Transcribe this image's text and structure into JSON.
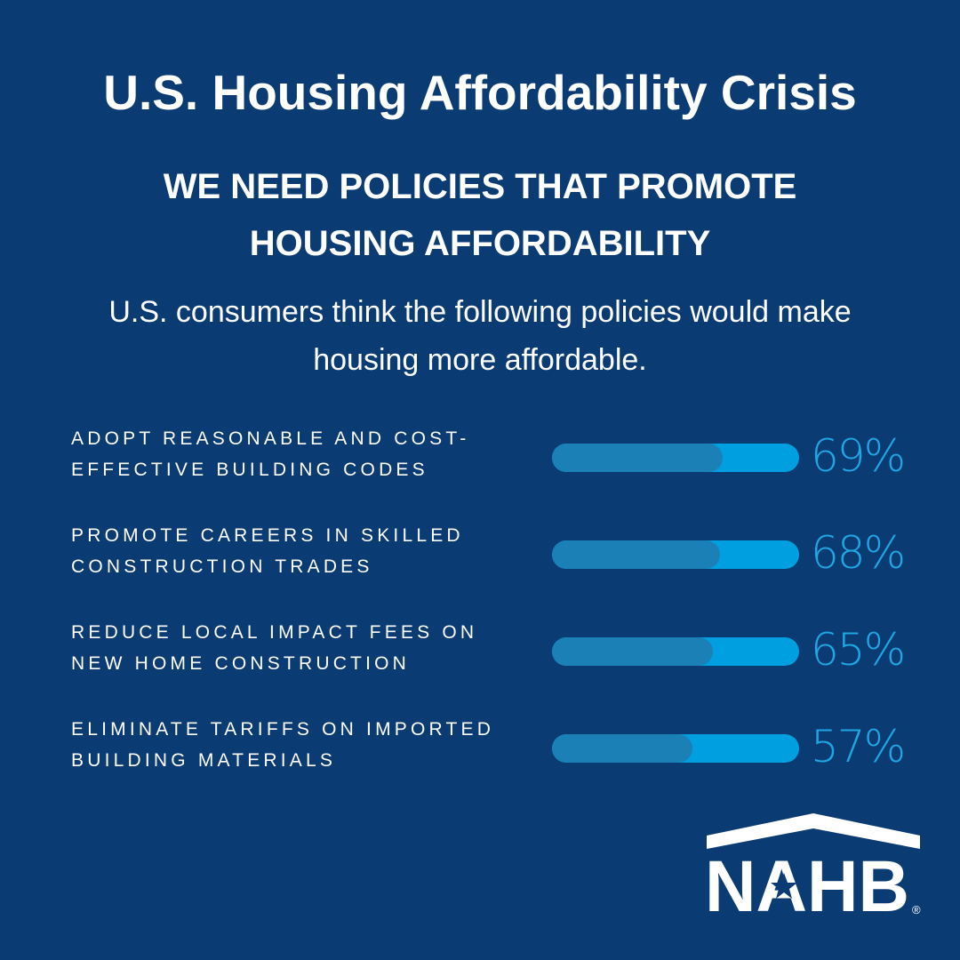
{
  "title": "U.S. Housing Affordability Crisis",
  "subtitle_lines": [
    "WE NEED POLICIES THAT PROMOTE",
    "HOUSING AFFORDABILITY"
  ],
  "description_lines": [
    "U.S. consumers think the following policies would make",
    "housing more affordable."
  ],
  "colors": {
    "background": "#0b3b73",
    "bar_track": "#00a0e0",
    "bar_fill": "#1b80b6",
    "percent_text": "#1fa7e4"
  },
  "chart_data": {
    "type": "bar",
    "orientation": "horizontal",
    "categories": [
      [
        "ADOPT REASONABLE AND COST-",
        "EFFECTIVE BUILDING CODES"
      ],
      [
        "PROMOTE CAREERS IN SKILLED",
        "CONSTRUCTION TRADES"
      ],
      [
        "REDUCE LOCAL IMPACT FEES ON",
        "NEW HOME CONSTRUCTION"
      ],
      [
        "ELIMINATE TARIFFS ON IMPORTED",
        "BUILDING MATERIALS"
      ]
    ],
    "values": [
      69,
      68,
      65,
      57
    ],
    "value_labels": [
      "69%",
      "68%",
      "65%",
      "57%"
    ],
    "xlim": [
      0,
      100
    ],
    "unit": "%"
  },
  "logo": {
    "text": "NAHB",
    "mark": "®"
  }
}
